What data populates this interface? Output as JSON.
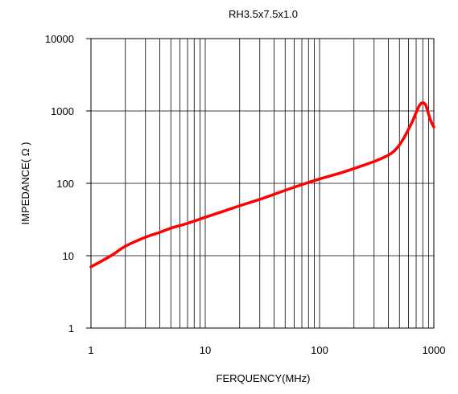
{
  "chart_data": {
    "type": "line",
    "title": "RH3.5x7.5x1.0",
    "xlabel": "FERQUENCY(MHz)",
    "ylabel": "IMPEDANCE( Ω )",
    "x_scale": "log",
    "y_scale": "log",
    "xlim": [
      1,
      1000
    ],
    "ylim": [
      1,
      10000
    ],
    "x_ticks": [
      1,
      10,
      100,
      1000
    ],
    "x_tick_labels": [
      "1",
      "10",
      "100",
      "1000"
    ],
    "y_ticks": [
      1,
      10,
      100,
      1000,
      10000
    ],
    "y_tick_labels": [
      "1",
      "10",
      "100",
      "1000",
      "10000"
    ],
    "grid": true,
    "legend": "none",
    "series": [
      {
        "color": "#ff0000",
        "x": [
          1,
          1.5,
          2,
          3,
          4,
          5,
          7,
          10,
          15,
          20,
          30,
          50,
          70,
          100,
          150,
          200,
          300,
          400,
          450,
          500,
          550,
          600,
          650,
          700,
          750,
          800,
          850,
          900,
          950,
          1000
        ],
        "y": [
          7,
          10,
          13.5,
          18,
          21,
          24,
          28,
          34,
          42,
          49,
          60,
          80,
          96,
          115,
          138,
          160,
          200,
          245,
          280,
          340,
          430,
          560,
          720,
          950,
          1200,
          1300,
          1200,
          900,
          700,
          600
        ]
      }
    ]
  }
}
